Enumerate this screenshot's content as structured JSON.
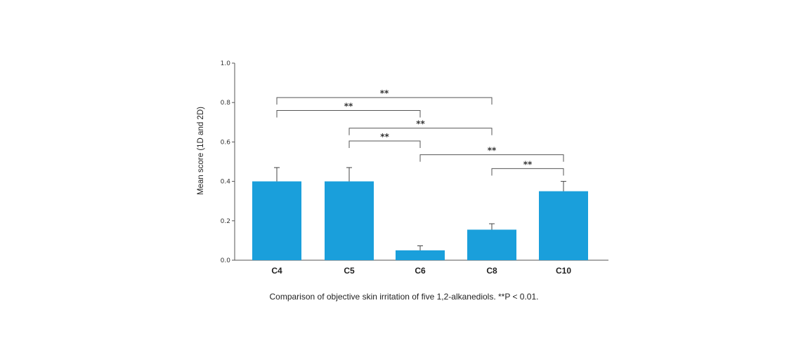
{
  "chart_data": {
    "type": "bar",
    "categories": [
      "C4",
      "C5",
      "C6",
      "C8",
      "C10"
    ],
    "values": [
      0.4,
      0.4,
      0.05,
      0.155,
      0.35
    ],
    "error": [
      0.07,
      0.07,
      0.023,
      0.03,
      0.05
    ],
    "ylabel": "Mean score (1D and 2D)",
    "xlabel": "",
    "ylim": [
      0,
      1.0
    ],
    "yticks": [
      "0.0",
      "0.2",
      "0.4",
      "0.6",
      "0.8",
      "1.0"
    ],
    "ytick_values": [
      0,
      0.2,
      0.4,
      0.6,
      0.8,
      1.0
    ],
    "bar_color": "#1a9fdb",
    "grid": false,
    "significance": [
      {
        "from": "C4",
        "to": "C8",
        "label": "**"
      },
      {
        "from": "C4",
        "to": "C6",
        "label": "**"
      },
      {
        "from": "C5",
        "to": "C8",
        "label": "**"
      },
      {
        "from": "C5",
        "to": "C6",
        "label": "**"
      },
      {
        "from": "C6",
        "to": "C10",
        "label": "**"
      },
      {
        "from": "C8",
        "to": "C10",
        "label": "**"
      }
    ]
  },
  "caption": "Comparison of objective skin irritation of five 1,2-alkanediols. **P < 0.01."
}
